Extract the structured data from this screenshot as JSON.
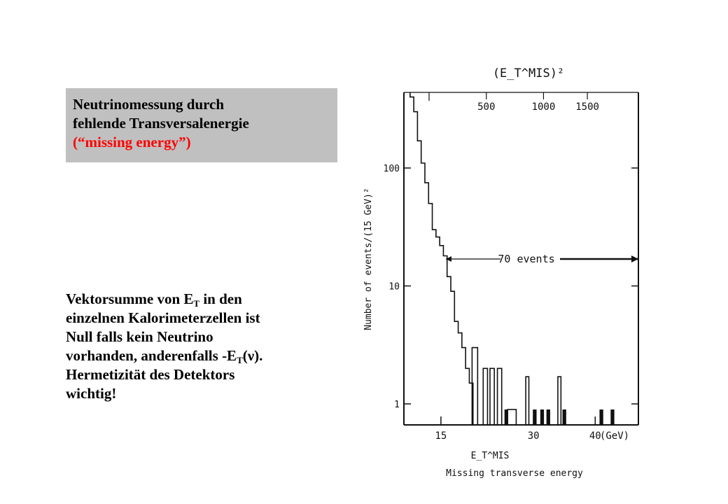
{
  "slide": {
    "title_line1": "Neutrinomessung durch",
    "title_line2": "fehlende Transversalenergie",
    "title_line3": "(“missing energy”)",
    "body": {
      "line1_pre": "Vektorsumme von E",
      "line1_sub": "T",
      "line1_post": " in den",
      "line2": "einzelnen Kalorimeterzellen ist",
      "line3": "Null falls kein Neutrino",
      "line4_pre": "vorhanden, anderenfalls -E",
      "line4_sub": "T",
      "line4_post": "(ν).",
      "line5": "Hermetizität des Detektors",
      "line6": "wichtig!"
    }
  },
  "colors": {
    "title_box_bg": "#c0c0c0",
    "highlight_text": "#ff0000",
    "plot_ink": "#111111"
  },
  "chart_data": {
    "type": "bar",
    "title": "",
    "xlabel": "Missing transverse energy",
    "x_symbol": "E_T^MIS",
    "x_unit": "(GeV)",
    "ylabel": "Number of events/(15 GeV)²",
    "top_axis_label": "(E_T^MIS)²",
    "x_ticks": [
      "15",
      "30",
      "40"
    ],
    "x_tick_values": [
      15,
      30,
      40
    ],
    "top_ticks": [
      "500",
      "1000",
      "1500"
    ],
    "top_tick_values": [
      500,
      1000,
      1500
    ],
    "y_ticks": [
      "1",
      "10",
      "100"
    ],
    "y_tick_values": [
      1,
      10,
      100
    ],
    "y_scale": "log",
    "annotation": "70 events",
    "bins_x_range": [
      9,
      47
    ],
    "step_hist": [
      {
        "x": 10.0,
        "y": 400
      },
      {
        "x": 10.6,
        "y": 300
      },
      {
        "x": 11.2,
        "y": 170
      },
      {
        "x": 11.8,
        "y": 110
      },
      {
        "x": 12.4,
        "y": 75
      },
      {
        "x": 13.0,
        "y": 50
      },
      {
        "x": 13.6,
        "y": 30
      },
      {
        "x": 14.2,
        "y": 26
      },
      {
        "x": 14.8,
        "y": 22
      },
      {
        "x": 15.4,
        "y": 18
      },
      {
        "x": 16.0,
        "y": 12
      },
      {
        "x": 16.6,
        "y": 9
      },
      {
        "x": 17.2,
        "y": 5
      },
      {
        "x": 17.8,
        "y": 4
      },
      {
        "x": 18.4,
        "y": 3
      },
      {
        "x": 19.0,
        "y": 2
      },
      {
        "x": 19.6,
        "y": 1.5
      }
    ],
    "step_hist_end": 20.2,
    "peaks": [
      {
        "x": 20.5,
        "y": 3,
        "w": 0.9
      },
      {
        "x": 22.2,
        "y": 2,
        "w": 0.7
      },
      {
        "x": 23.3,
        "y": 2,
        "w": 0.7
      },
      {
        "x": 24.5,
        "y": 2,
        "w": 0.7
      },
      {
        "x": 29.0,
        "y": 1.7,
        "w": 0.5
      },
      {
        "x": 34.2,
        "y": 1.7,
        "w": 0.5
      }
    ],
    "boxes": [
      {
        "x": 26.5,
        "y": 1,
        "w": 1.4
      }
    ],
    "filled_bars": [
      {
        "x": 25.6,
        "y": 1,
        "w": 0.6
      },
      {
        "x": 30.2,
        "y": 1,
        "w": 0.6
      },
      {
        "x": 31.4,
        "y": 1,
        "w": 0.6
      },
      {
        "x": 32.4,
        "y": 1,
        "w": 0.6
      },
      {
        "x": 35.0,
        "y": 1,
        "w": 0.6
      },
      {
        "x": 41.0,
        "y": 1,
        "w": 0.6
      },
      {
        "x": 42.8,
        "y": 1,
        "w": 0.6
      }
    ]
  }
}
